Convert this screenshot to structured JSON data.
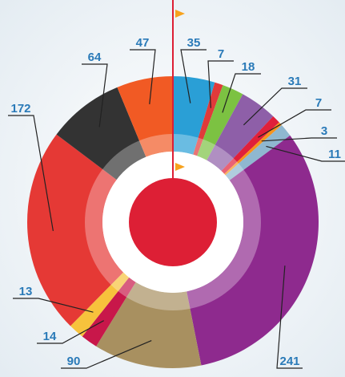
{
  "chart_data": {
    "type": "donut",
    "values": [
      35,
      7,
      18,
      31,
      7,
      3,
      11,
      241,
      90,
      14,
      13,
      172,
      64,
      47
    ],
    "colors": [
      "#2a9fd6",
      "#e03a3a",
      "#7cc242",
      "#8e5fa8",
      "#e0203a",
      "#f7941d",
      "#8fb8d0",
      "#8e2a8e",
      "#a89060",
      "#c8174a",
      "#f7c23c",
      "#e53935",
      "#333333",
      "#f15a24"
    ]
  }
}
